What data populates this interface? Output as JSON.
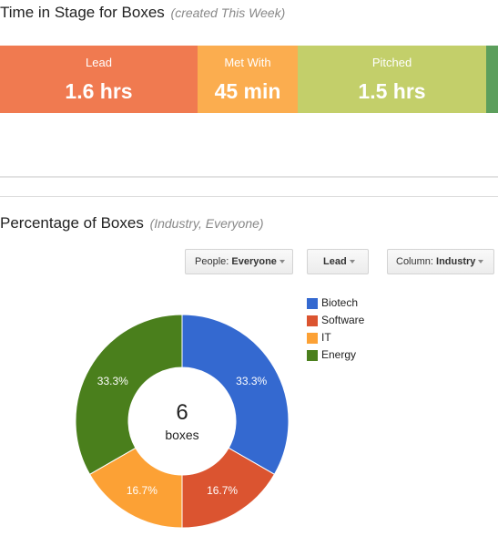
{
  "stage_time": {
    "title": "Time in Stage for Boxes",
    "subtitle": "(created This Week)",
    "segments": [
      {
        "label": "Lead",
        "value": "1.6 hrs",
        "color": "#f07a50"
      },
      {
        "label": "Met With",
        "value": "45 min",
        "color": "#fbad4f"
      },
      {
        "label": "Pitched",
        "value": "1.5 hrs",
        "color": "#c3cf6a"
      },
      {
        "label": "",
        "value": "",
        "color": "#5c9f5c"
      }
    ]
  },
  "percentage": {
    "title": "Percentage of Boxes",
    "subtitle": "(Industry, Everyone)",
    "filters": {
      "people_prefix": "People:",
      "people_value": "Everyone",
      "stage_value": "Lead",
      "column_prefix": "Column:",
      "column_value": "Industry"
    },
    "center_count": "6",
    "center_unit": "boxes"
  },
  "chart_data": {
    "type": "pie",
    "variant": "donut",
    "categories": [
      "Biotech",
      "Software",
      "IT",
      "Energy"
    ],
    "values": [
      33.3,
      16.7,
      16.7,
      33.3
    ],
    "labels": [
      "33.3%",
      "16.7%",
      "16.7%",
      "33.3%"
    ],
    "colors": [
      "#3469d0",
      "#db5430",
      "#fca135",
      "#4a7f1c"
    ],
    "legend_position": "right"
  }
}
